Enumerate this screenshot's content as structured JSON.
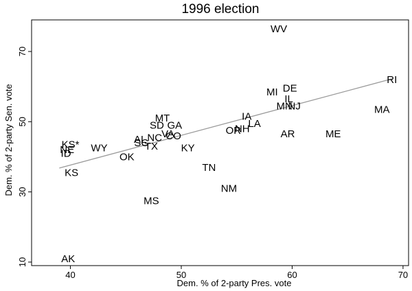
{
  "chart_data": {
    "type": "scatter",
    "title": "1996 election",
    "xlabel": "Dem. % of 2-party Pres. vote",
    "ylabel": "Dem. % of 2-party Sen. vote",
    "xlim": [
      36.5,
      70.5
    ],
    "ylim": [
      9,
      79
    ],
    "x_ticks": [
      40,
      50,
      60,
      70
    ],
    "y_ticks": [
      10,
      30,
      50,
      70
    ],
    "grid": false,
    "fit_line": {
      "x": [
        39.0,
        69.0
      ],
      "y": [
        36.8,
        62.2
      ],
      "color": "#999999"
    },
    "points": [
      {
        "label": "WV",
        "x": 58.8,
        "y": 76.5
      },
      {
        "label": "RI",
        "x": 69.0,
        "y": 62.0
      },
      {
        "label": "DE",
        "x": 59.8,
        "y": 59.5
      },
      {
        "label": "MI",
        "x": 58.2,
        "y": 58.5
      },
      {
        "label": "IL",
        "x": 59.7,
        "y": 56.5
      },
      {
        "label": "MN",
        "x": 59.3,
        "y": 54.5
      },
      {
        "label": "NJ",
        "x": 60.2,
        "y": 54.5
      },
      {
        "label": "MA",
        "x": 68.1,
        "y": 53.5
      },
      {
        "label": "IA",
        "x": 55.9,
        "y": 51.5
      },
      {
        "label": "LA",
        "x": 56.6,
        "y": 49.5
      },
      {
        "label": "NH",
        "x": 55.5,
        "y": 48.0
      },
      {
        "label": "OR",
        "x": 54.7,
        "y": 47.5
      },
      {
        "label": "AR",
        "x": 59.6,
        "y": 46.5
      },
      {
        "label": "ME",
        "x": 63.7,
        "y": 46.5
      },
      {
        "label": "MT",
        "x": 48.3,
        "y": 51.0
      },
      {
        "label": "SD",
        "x": 47.8,
        "y": 49.0
      },
      {
        "label": "GA",
        "x": 49.4,
        "y": 49.0
      },
      {
        "label": "VA",
        "x": 48.8,
        "y": 46.5
      },
      {
        "label": "CO",
        "x": 49.3,
        "y": 46.0
      },
      {
        "label": "NC",
        "x": 47.6,
        "y": 45.5
      },
      {
        "label": "AL",
        "x": 46.3,
        "y": 45.0
      },
      {
        "label": "SC",
        "x": 46.4,
        "y": 44.0
      },
      {
        "label": "TX",
        "x": 47.3,
        "y": 43.0
      },
      {
        "label": "KY",
        "x": 50.6,
        "y": 42.5
      },
      {
        "label": "WY",
        "x": 42.6,
        "y": 42.5
      },
      {
        "label": "KS*",
        "x": 40.0,
        "y": 43.5
      },
      {
        "label": "NE",
        "x": 39.7,
        "y": 42.0
      },
      {
        "label": "ID",
        "x": 39.6,
        "y": 41.0
      },
      {
        "label": "OK",
        "x": 45.1,
        "y": 40.0
      },
      {
        "label": "TN",
        "x": 52.5,
        "y": 37.0
      },
      {
        "label": "KS",
        "x": 40.1,
        "y": 35.5
      },
      {
        "label": "NM",
        "x": 54.3,
        "y": 31.0
      },
      {
        "label": "MS",
        "x": 47.3,
        "y": 27.5
      },
      {
        "label": "AK",
        "x": 39.8,
        "y": 11.0
      }
    ]
  }
}
